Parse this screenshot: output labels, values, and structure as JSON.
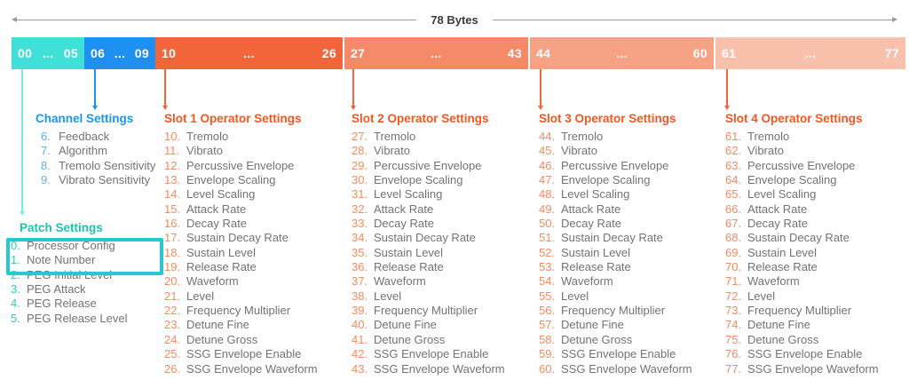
{
  "measure": {
    "label": "78 Bytes"
  },
  "bar": {
    "segments": [
      {
        "start": "00",
        "dots": "...",
        "end": "05",
        "color": "#3EE0D7"
      },
      {
        "start": "06",
        "dots": "...",
        "end": "09",
        "color": "#1E90F2"
      },
      {
        "start": "10",
        "dots": "...",
        "end": "26",
        "color": "#F2653A"
      },
      {
        "start": "27",
        "dots": "...",
        "end": "43",
        "color": "#F58A68"
      },
      {
        "start": "44",
        "dots": "...",
        "end": "60",
        "color": "#F6A285"
      },
      {
        "start": "61",
        "dots": "...",
        "end": "77",
        "color": "#F9C0AB"
      }
    ]
  },
  "selection": {
    "color": "#25C8D3"
  },
  "groups": [
    {
      "key": "patch",
      "title": "Patch Settings",
      "accent": "#1FC3A8",
      "number_color": "#2FCDB4",
      "arrow_color": "#80E8E2",
      "items": [
        {
          "num": "0.",
          "label": "Processor Config"
        },
        {
          "num": "1.",
          "label": "Note Number"
        },
        {
          "num": "2.",
          "label": "PEG Initial Level"
        },
        {
          "num": "3.",
          "label": "PEG Attack"
        },
        {
          "num": "4.",
          "label": "PEG Release"
        },
        {
          "num": "5.",
          "label": "PEG Release Level"
        }
      ]
    },
    {
      "key": "channel",
      "title": "Channel Settings",
      "accent": "#1E96F0",
      "number_color": "#5FB2F2",
      "arrow_color": "#1E90F2",
      "items": [
        {
          "num": "6.",
          "label": "Feedback"
        },
        {
          "num": "7.",
          "label": "Algorithm"
        },
        {
          "num": "8.",
          "label": "Tremolo Sensitivity"
        },
        {
          "num": "9.",
          "label": "Vibrato Sensitivity"
        }
      ]
    },
    {
      "key": "slot1",
      "title": "Slot 1 Operator Settings",
      "accent": "#F25722",
      "number_color": "#F58B5E",
      "arrow_color": "#F2653A",
      "items": [
        {
          "num": "10.",
          "label": "Tremolo"
        },
        {
          "num": "11.",
          "label": "Vibrato"
        },
        {
          "num": "12.",
          "label": "Percussive Envelope"
        },
        {
          "num": "13.",
          "label": "Envelope Scaling"
        },
        {
          "num": "14.",
          "label": "Level Scaling"
        },
        {
          "num": "15.",
          "label": "Attack Rate"
        },
        {
          "num": "16.",
          "label": "Decay Rate"
        },
        {
          "num": "17.",
          "label": "Sustain Decay Rate"
        },
        {
          "num": "18.",
          "label": "Sustain Level"
        },
        {
          "num": "19.",
          "label": "Release Rate"
        },
        {
          "num": "20.",
          "label": "Waveform"
        },
        {
          "num": "21.",
          "label": "Level"
        },
        {
          "num": "22.",
          "label": "Frequency Multiplier"
        },
        {
          "num": "23.",
          "label": "Detune Fine"
        },
        {
          "num": "24.",
          "label": "Detune Gross"
        },
        {
          "num": "25.",
          "label": "SSG Envelope Enable"
        },
        {
          "num": "26.",
          "label": "SSG Envelope Waveform"
        }
      ]
    },
    {
      "key": "slot2",
      "title": "Slot 2 Operator Settings",
      "accent": "#F25722",
      "number_color": "#F58B5E",
      "arrow_color": "#F2653A",
      "items": [
        {
          "num": "27.",
          "label": "Tremolo"
        },
        {
          "num": "28.",
          "label": "Vibrato"
        },
        {
          "num": "29.",
          "label": "Percussive Envelope"
        },
        {
          "num": "30.",
          "label": "Envelope Scaling"
        },
        {
          "num": "31.",
          "label": "Level Scaling"
        },
        {
          "num": "32.",
          "label": "Attack Rate"
        },
        {
          "num": "33.",
          "label": "Decay Rate"
        },
        {
          "num": "34.",
          "label": "Sustain Decay Rate"
        },
        {
          "num": "35.",
          "label": "Sustain Level"
        },
        {
          "num": "36.",
          "label": "Release Rate"
        },
        {
          "num": "37.",
          "label": "Waveform"
        },
        {
          "num": "38.",
          "label": "Level"
        },
        {
          "num": "39.",
          "label": "Frequency Multiplier"
        },
        {
          "num": "40.",
          "label": "Detune Fine"
        },
        {
          "num": "41.",
          "label": "Detune Gross"
        },
        {
          "num": "42.",
          "label": "SSG Envelope Enable"
        },
        {
          "num": "43.",
          "label": "SSG Envelope Waveform"
        }
      ]
    },
    {
      "key": "slot3",
      "title": "Slot 3 Operator Settings",
      "accent": "#F25722",
      "number_color": "#F58B5E",
      "arrow_color": "#F2653A",
      "items": [
        {
          "num": "44.",
          "label": "Tremolo"
        },
        {
          "num": "45.",
          "label": "Vibrato"
        },
        {
          "num": "46.",
          "label": "Percussive Envelope"
        },
        {
          "num": "47.",
          "label": "Envelope Scaling"
        },
        {
          "num": "48.",
          "label": "Level Scaling"
        },
        {
          "num": "49.",
          "label": "Attack Rate"
        },
        {
          "num": "50.",
          "label": "Decay Rate"
        },
        {
          "num": "51.",
          "label": "Sustain Decay Rate"
        },
        {
          "num": "52.",
          "label": "Sustain Level"
        },
        {
          "num": "53.",
          "label": "Release Rate"
        },
        {
          "num": "54.",
          "label": "Waveform"
        },
        {
          "num": "55.",
          "label": "Level"
        },
        {
          "num": "56.",
          "label": "Frequency Multiplier"
        },
        {
          "num": "57.",
          "label": "Detune Fine"
        },
        {
          "num": "58.",
          "label": "Detune Gross"
        },
        {
          "num": "59.",
          "label": "SSG Envelope Enable"
        },
        {
          "num": "60.",
          "label": "SSG Envelope Waveform"
        }
      ]
    },
    {
      "key": "slot4",
      "title": "Slot 4 Operator Settings",
      "accent": "#F25722",
      "number_color": "#F58B5E",
      "arrow_color": "#F2653A",
      "items": [
        {
          "num": "61.",
          "label": "Tremolo"
        },
        {
          "num": "62.",
          "label": "Vibrato"
        },
        {
          "num": "63.",
          "label": "Percussive Envelope"
        },
        {
          "num": "64.",
          "label": "Envelope Scaling"
        },
        {
          "num": "65.",
          "label": "Level Scaling"
        },
        {
          "num": "66.",
          "label": "Attack Rate"
        },
        {
          "num": "67.",
          "label": "Decay Rate"
        },
        {
          "num": "68.",
          "label": "Sustain Decay Rate"
        },
        {
          "num": "69.",
          "label": "Sustain Level"
        },
        {
          "num": "70.",
          "label": "Release Rate"
        },
        {
          "num": "71.",
          "label": "Waveform"
        },
        {
          "num": "72.",
          "label": "Level"
        },
        {
          "num": "73.",
          "label": "Frequency Multiplier"
        },
        {
          "num": "74.",
          "label": "Detune Fine"
        },
        {
          "num": "75.",
          "label": "Detune Gross"
        },
        {
          "num": "76.",
          "label": "SSG Envelope Enable"
        },
        {
          "num": "77.",
          "label": "SSG Envelope Waveform"
        }
      ]
    }
  ]
}
